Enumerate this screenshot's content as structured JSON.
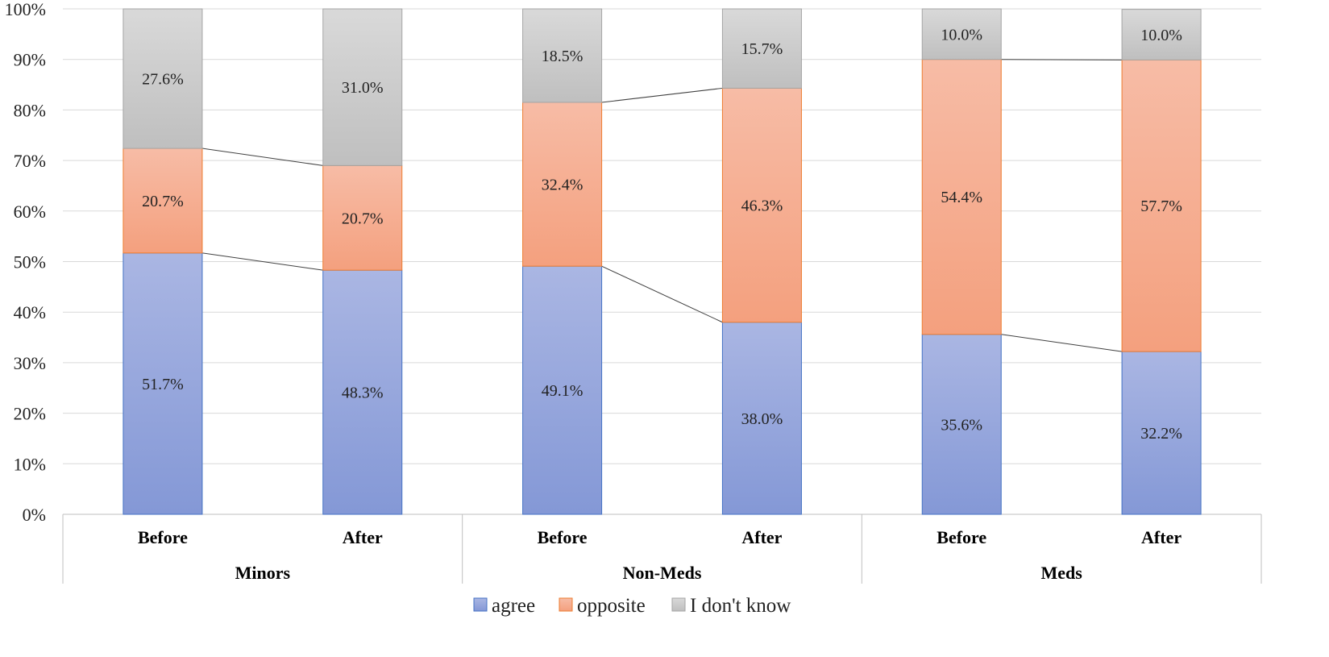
{
  "chart_data": {
    "type": "bar",
    "stacked": true,
    "groups": [
      "Minors",
      "Non-Meds",
      "Meds"
    ],
    "categories": [
      "Before",
      "After",
      "Before",
      "After",
      "Before",
      "After"
    ],
    "series": [
      {
        "name": "agree",
        "values": [
          51.7,
          48.3,
          49.1,
          38.0,
          35.6,
          32.2
        ],
        "labels": [
          "51.7%",
          "48.3%",
          "49.1%",
          "38.0%",
          "35.6%",
          "32.2%"
        ]
      },
      {
        "name": "opposite",
        "values": [
          20.7,
          20.7,
          32.4,
          46.3,
          54.4,
          57.7
        ],
        "labels": [
          "20.7%",
          "20.7%",
          "32.4%",
          "46.3%",
          "54.4%",
          "57.7%"
        ]
      },
      {
        "name": "I don't know",
        "values": [
          27.6,
          31.0,
          18.5,
          15.7,
          10.0,
          10.0
        ],
        "labels": [
          "27.6%",
          "31.0%",
          "18.5%",
          "15.7%",
          "10.0%",
          "10.0%"
        ]
      }
    ],
    "ylim": [
      0,
      100
    ],
    "yticks": [
      "0%",
      "10%",
      "20%",
      "30%",
      "40%",
      "50%",
      "60%",
      "70%",
      "80%",
      "90%",
      "100%"
    ],
    "grid": true,
    "series_lines": true,
    "legend": "bottom",
    "title": "",
    "xlabel": "",
    "ylabel": ""
  },
  "colors": {
    "agree_top": "#aab6e3",
    "agree_bottom": "#8498d6",
    "agree_edge": "#4472c4",
    "opposite_top": "#f7bca6",
    "opposite_bottom": "#f4a07e",
    "opposite_edge": "#ed7d31",
    "unknown_top": "#d9d9d9",
    "unknown_bottom": "#bfbfbf",
    "unknown_edge": "#a5a5a5",
    "grid": "#d9d9d9",
    "axis": "#bfbfbf"
  }
}
